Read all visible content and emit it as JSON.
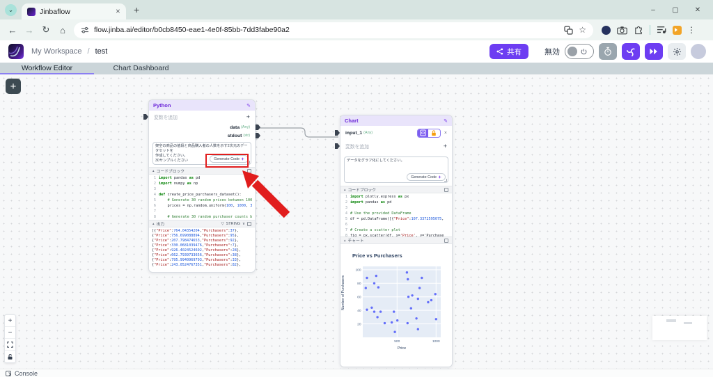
{
  "browser": {
    "tab_title": "Jinbaflow",
    "url": "flow.jinba.ai/editor/b0cb8450-eae1-4e0f-85bb-7dd3fabe90a2"
  },
  "icons": {
    "tab_search": "⌄",
    "tab_close": "✕",
    "new_tab": "+",
    "min": "–",
    "max": "▢",
    "close": "✕",
    "back": "←",
    "forward": "→",
    "reload": "↻",
    "home": "⌂",
    "star": "☆",
    "menu": "⋮",
    "pencil": "✎",
    "plus": "+",
    "collapse": "▴",
    "filter": "▽",
    "chevron": "∨",
    "remove": "×",
    "zoom_in": "+",
    "zoom_out": "−"
  },
  "app_header": {
    "workspace": "My Workspace",
    "separator": "/",
    "project": "test",
    "share_label": "共有",
    "disabled_label": "無効"
  },
  "nav_tabs": {
    "workflow": "Workflow Editor",
    "dashboard": "Chart Dashboard"
  },
  "python_node": {
    "title": "Python",
    "add_variable": "変数を追加",
    "outputs": [
      {
        "name": "data",
        "type": "(Any)"
      },
      {
        "name": "stdout",
        "type": "(str)"
      }
    ],
    "prompt": "架空の商品の値段と商品購入者の人数を示す2次元のデータセットを\n作成してください。\n30サンプルください",
    "generate_code_label": "Generate Code",
    "code_block_label": "コードブロック",
    "code": [
      "import pandas as pd",
      "import numpy as np",
      "",
      "def create_price_purchasers_dataset():",
      "    # Generate 30 random prices between 100",
      "    prices = np.random.uniform(100, 1000, 3",
      "",
      "    # Generate 30 random purchaser counts b"
    ],
    "output_label": "出力",
    "output_type": "STRING",
    "output_lines": [
      "[{\"Price\":764.04354204,\"Purchasers\":37},",
      "{\"Price\":756.699088894,\"Purchasers\":95},",
      "{\"Price\":207.798474653,\"Purchasers\":92},",
      "{\"Price\":330.0681039476,\"Purchasers\":7},",
      "{\"Price\":926.4024524692,\"Purchasers\":28},",
      "{\"Price\":662.7939733656,\"Purchasers\":38},",
      "{\"Price\":795.9940969793,\"Purchasers\":33},",
      "{\"Price\":243.0524767351,\"Purchasers\":82},"
    ]
  },
  "chart_node": {
    "title": "Chart",
    "input_name": "input_1",
    "input_type": "(Any)",
    "add_variable": "変数を追加",
    "prompt": "データをグラフ化にしてください。",
    "generate_code_label": "Generate Code",
    "code_block_label": "コードブロック",
    "code": [
      "import plotly.express as px",
      "import pandas as pd",
      "",
      "# Use the provided DataFrame",
      "df = pd.DataFrame([{\"Price\":107.3372595075,",
      "",
      "# Create a scatter plot",
      "fig = px.scatter(df, x='Price', y='Purchase"
    ],
    "chart_label": "チャート"
  },
  "chart_data": {
    "type": "scatter",
    "title": "Price vs Purchasers",
    "xlabel": "Price",
    "ylabel": "Number of Purchasers",
    "xlim": [
      60,
      1060
    ],
    "ylim": [
      0,
      105
    ],
    "xticks": [
      500,
      1000
    ],
    "yticks": [
      20,
      40,
      60,
      80,
      100
    ],
    "grid": true,
    "marker_color": "#636efa",
    "plot_bg": "#e5ecf6",
    "points": [
      [
        114,
        88
      ],
      [
        232,
        91
      ],
      [
        207,
        80
      ],
      [
        98,
        73
      ],
      [
        260,
        74
      ],
      [
        626,
        96
      ],
      [
        638,
        86
      ],
      [
        817,
        88
      ],
      [
        789,
        73
      ],
      [
        646,
        60
      ],
      [
        695,
        62
      ],
      [
        768,
        57
      ],
      [
        990,
        64
      ],
      [
        898,
        52
      ],
      [
        939,
        55
      ],
      [
        114,
        41
      ],
      [
        175,
        44
      ],
      [
        207,
        38
      ],
      [
        289,
        38
      ],
      [
        248,
        30
      ],
      [
        459,
        38
      ],
      [
        679,
        43
      ],
      [
        341,
        21
      ],
      [
        431,
        22
      ],
      [
        504,
        25
      ],
      [
        634,
        21
      ],
      [
        748,
        28
      ],
      [
        1000,
        27
      ],
      [
        768,
        12
      ],
      [
        472,
        8
      ]
    ]
  },
  "statusbar": {
    "console_label": "Console"
  }
}
